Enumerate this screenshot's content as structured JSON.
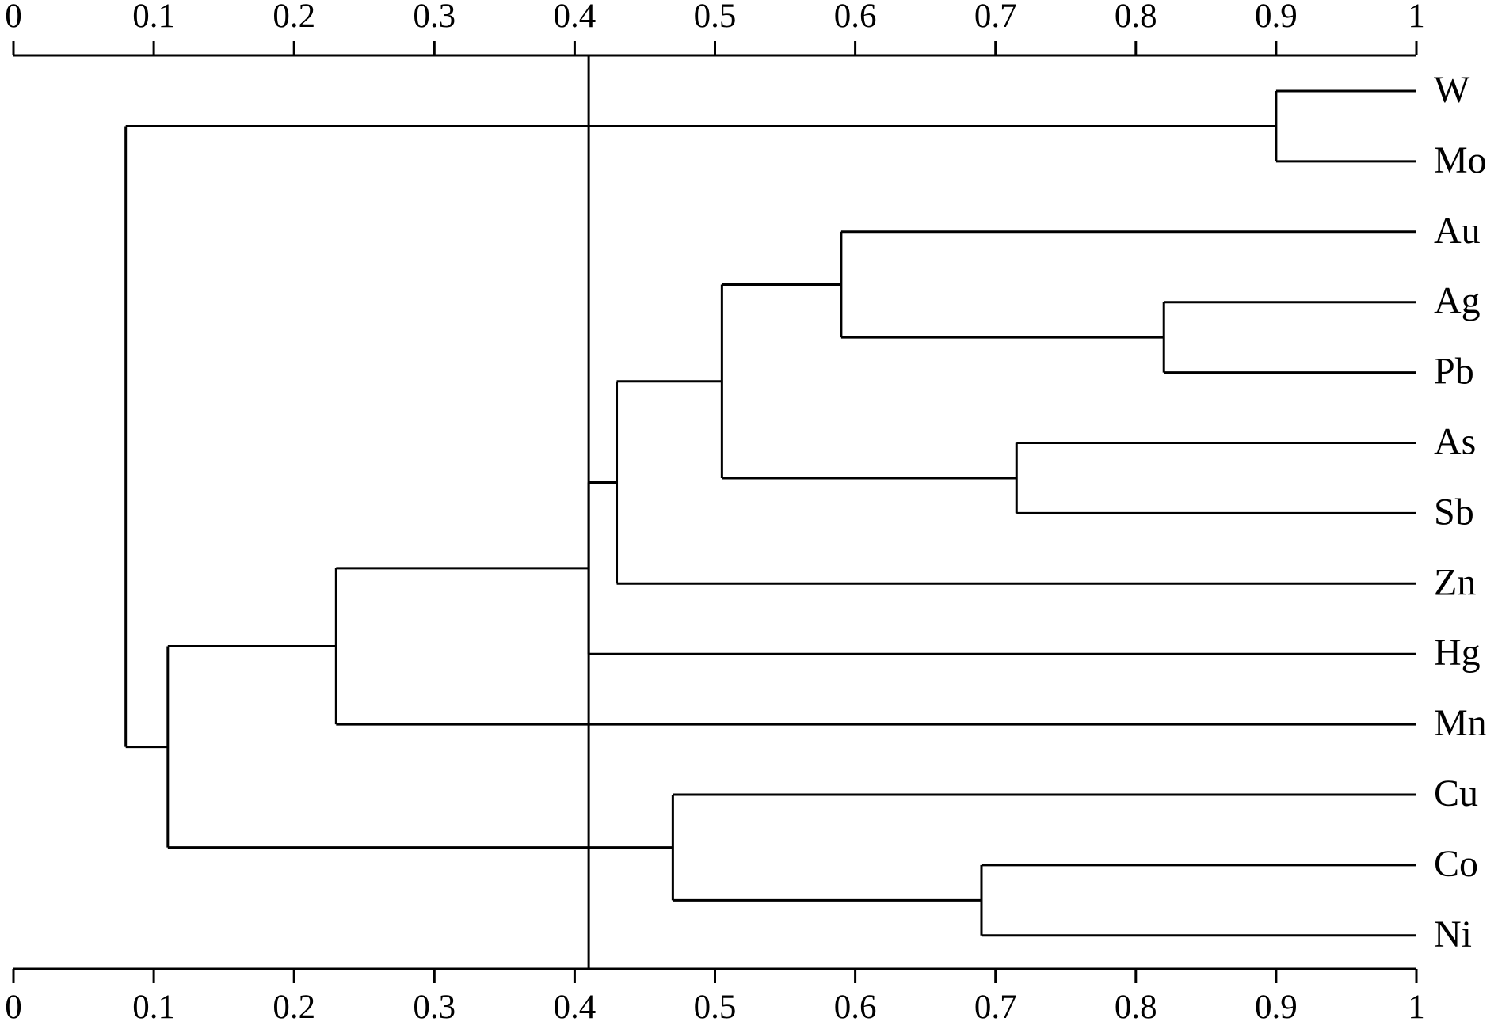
{
  "chart_data": {
    "type": "dendrogram",
    "xlim": [
      0,
      1
    ],
    "xticks": [
      0,
      0.1,
      0.2,
      0.3,
      0.4,
      0.5,
      0.6,
      0.7,
      0.8,
      0.9,
      1
    ],
    "threshold": 0.41,
    "color": "#000000",
    "tree": {
      "value": 0.08,
      "children": [
        {
          "value": 0.9,
          "children": [
            "W",
            "Mo"
          ]
        },
        {
          "value": 0.11,
          "children": [
            {
              "value": 0.23,
              "children": [
                {
                  "value": 0.41,
                  "children": [
                    {
                      "value": 0.43,
                      "children": [
                        {
                          "value": 0.505,
                          "children": [
                            {
                              "value": 0.59,
                              "children": [
                                "Au",
                                {
                                  "value": 0.82,
                                  "children": [
                                    "Ag",
                                    "Pb"
                                  ]
                                }
                              ]
                            },
                            {
                              "value": 0.715,
                              "children": [
                                "As",
                                "Sb"
                              ]
                            }
                          ]
                        },
                        "Zn"
                      ]
                    },
                    "Hg"
                  ]
                },
                "Mn"
              ]
            },
            {
              "value": 0.47,
              "children": [
                "Cu",
                {
                  "value": 0.69,
                  "children": [
                    "Co",
                    "Ni"
                  ]
                }
              ]
            }
          ]
        }
      ]
    }
  }
}
